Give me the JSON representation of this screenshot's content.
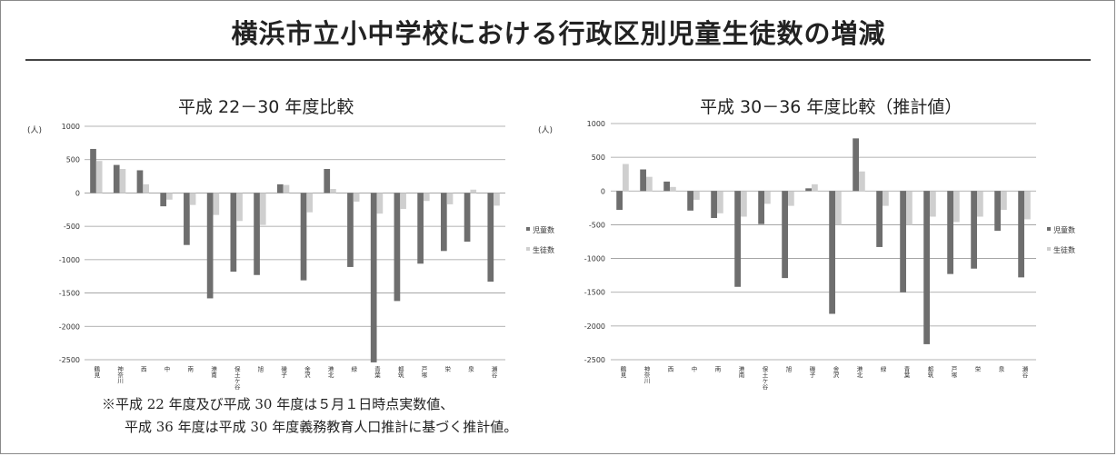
{
  "title": "横浜市立小中学校における行政区別児童生徒数の増減",
  "notes": [
    "※平成 22 年度及び平成 30 年度は５月１日時点実数値、",
    "平成 36 年度は平成 30 年度義務教育人口推計に基づく推計値。"
  ],
  "colors": {
    "children": "#6e6e6e",
    "students": "#cfcfcf"
  },
  "chart_data": [
    {
      "type": "bar",
      "title": "平成 22－30 年度比較",
      "unit": "(人)",
      "ylim": [
        -2500,
        1000
      ],
      "yticks": [
        1000,
        500,
        0,
        -500,
        -1000,
        -1500,
        -2000,
        -2500
      ],
      "grid": true,
      "legend_position": "right",
      "categories": [
        "鶴見",
        "神奈川",
        "西",
        "中",
        "南",
        "港南",
        "保土ケ谷",
        "旭",
        "磯子",
        "金沢",
        "港北",
        "緑",
        "青葉",
        "都筑",
        "戸塚",
        "栄",
        "泉",
        "瀬谷"
      ],
      "series": [
        {
          "name": "児童数",
          "values": [
            660,
            420,
            340,
            -200,
            -780,
            -1580,
            -1180,
            -1230,
            130,
            -1310,
            360,
            -1110,
            -2540,
            -1620,
            -1060,
            -870,
            -730,
            -1330
          ]
        },
        {
          "name": "生徒数",
          "values": [
            480,
            360,
            130,
            -100,
            -180,
            -330,
            -420,
            -480,
            120,
            -290,
            60,
            -130,
            -310,
            -240,
            -120,
            -170,
            50,
            -190
          ]
        }
      ]
    },
    {
      "type": "bar",
      "title": "平成 30－36 年度比較（推計値）",
      "unit": "(人)",
      "ylim": [
        -2500,
        1000
      ],
      "yticks": [
        1000,
        500,
        0,
        -500,
        -1000,
        -1500,
        -2000,
        -2500
      ],
      "grid": true,
      "legend_position": "right",
      "categories": [
        "鶴見",
        "神奈川",
        "西",
        "中",
        "南",
        "港南",
        "保土ケ谷",
        "旭",
        "磯子",
        "金沢",
        "港北",
        "緑",
        "青葉",
        "都筑",
        "戸塚",
        "栄",
        "泉",
        "瀬谷"
      ],
      "series": [
        {
          "name": "児童数",
          "values": [
            -280,
            320,
            140,
            -290,
            -400,
            -1420,
            -490,
            -1290,
            40,
            -1820,
            780,
            -830,
            -1500,
            -2270,
            -1230,
            -1150,
            -590,
            -1280
          ]
        },
        {
          "name": "生徒数",
          "values": [
            400,
            210,
            60,
            -130,
            -330,
            -380,
            -190,
            -220,
            100,
            -500,
            290,
            -220,
            -500,
            -380,
            -460,
            -380,
            -280,
            -420
          ]
        }
      ]
    }
  ]
}
